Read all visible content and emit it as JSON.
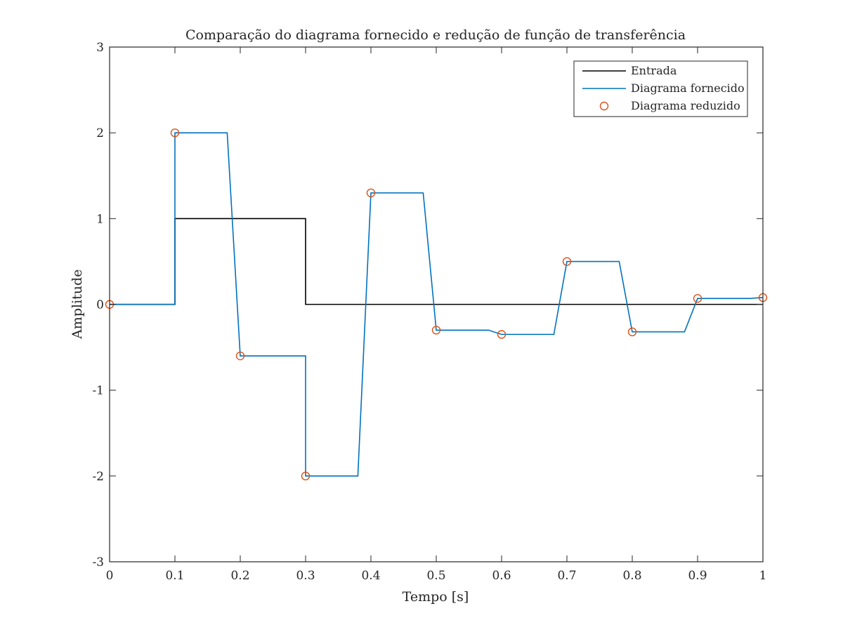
{
  "chart_data": {
    "type": "line",
    "title": "Comparação do diagrama fornecido e redução de função de transferência",
    "xlabel": "Tempo [s]",
    "ylabel": "Amplitude",
    "xlim": [
      0,
      1
    ],
    "ylim": [
      -3,
      3
    ],
    "x_ticks": [
      0,
      0.1,
      0.2,
      0.3,
      0.4,
      0.5,
      0.6,
      0.7,
      0.8,
      0.9,
      1
    ],
    "x_tick_labels": [
      "0",
      "0.1",
      "0.2",
      "0.3",
      "0.4",
      "0.5",
      "0.6",
      "0.7",
      "0.8",
      "0.9",
      "1"
    ],
    "y_ticks": [
      -3,
      -2,
      -1,
      0,
      1,
      2,
      3
    ],
    "y_tick_labels": [
      "-3",
      "-2",
      "-1",
      "0",
      "1",
      "2",
      "3"
    ],
    "grid": false,
    "legend_position": "top-right",
    "series": [
      {
        "name": "Entrada",
        "style": "line",
        "color": "#000000",
        "x": [
          0,
          0.1,
          0.1,
          0.3,
          0.3,
          1.0
        ],
        "y": [
          0,
          0,
          1,
          1,
          0,
          0
        ]
      },
      {
        "name": "Diagrama fornecido",
        "style": "line",
        "color": "#0072BD",
        "x": [
          0,
          0.1,
          0.1,
          0.18,
          0.2,
          0.3,
          0.3,
          0.38,
          0.4,
          0.48,
          0.5,
          0.58,
          0.6,
          0.68,
          0.7,
          0.78,
          0.8,
          0.88,
          0.9,
          0.98,
          1.0
        ],
        "y": [
          0,
          0,
          2,
          2,
          -0.6,
          -0.6,
          -2,
          -2,
          1.3,
          1.3,
          -0.3,
          -0.3,
          -0.35,
          -0.35,
          0.5,
          0.5,
          -0.32,
          -0.32,
          0.07,
          0.07,
          0.08
        ]
      },
      {
        "name": "Diagrama reduzido",
        "style": "markers",
        "color": "#D95319",
        "x": [
          0,
          0.1,
          0.2,
          0.3,
          0.4,
          0.5,
          0.6,
          0.7,
          0.8,
          0.9,
          1.0
        ],
        "y": [
          0,
          2,
          -0.6,
          -2,
          1.3,
          -0.3,
          -0.35,
          0.5,
          -0.32,
          0.07,
          0.08
        ]
      }
    ]
  }
}
